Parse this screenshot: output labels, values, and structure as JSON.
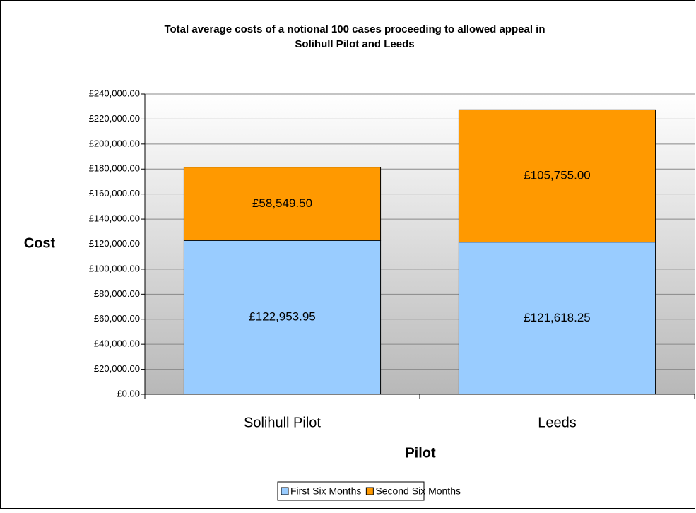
{
  "chart_data": {
    "type": "stacked_bar",
    "title": [
      "Total average costs of a notional 100 cases proceeding to allowed appeal in",
      "Solihull Pilot and Leeds"
    ],
    "x_label": "Pilot",
    "y_label": "Cost",
    "categories": [
      "Solihull Pilot",
      "Leeds"
    ],
    "series": [
      {
        "name": "First Six Months",
        "color": "#99ccff",
        "values": [
          122953.95,
          121618.25
        ],
        "value_labels": [
          "£122,953.95",
          "£121,618.25"
        ]
      },
      {
        "name": "Second Six Months",
        "color": "#ff9900",
        "values": [
          58549.5,
          105755
        ],
        "value_labels": [
          "£58,549.50",
          "£105,755.00"
        ]
      }
    ],
    "ylim": [
      0,
      240000
    ],
    "yticks": [
      {
        "value": 0,
        "label": "£0.00"
      },
      {
        "value": 20000,
        "label": "£20,000.00"
      },
      {
        "value": 40000,
        "label": "£40,000.00"
      },
      {
        "value": 60000,
        "label": "£60,000.00"
      },
      {
        "value": 80000,
        "label": "£80,000.00"
      },
      {
        "value": 100000,
        "label": "£100,000.00"
      },
      {
        "value": 120000,
        "label": "£120,000.00"
      },
      {
        "value": 140000,
        "label": "£140,000.00"
      },
      {
        "value": 160000,
        "label": "£160,000.00"
      },
      {
        "value": 180000,
        "label": "£180,000.00"
      },
      {
        "value": 200000,
        "label": "£200,000.00"
      },
      {
        "value": 220000,
        "label": "£220,000.00"
      },
      {
        "value": 240000,
        "label": "£240,000.00"
      }
    ],
    "grid": true,
    "legend": "bottom"
  }
}
